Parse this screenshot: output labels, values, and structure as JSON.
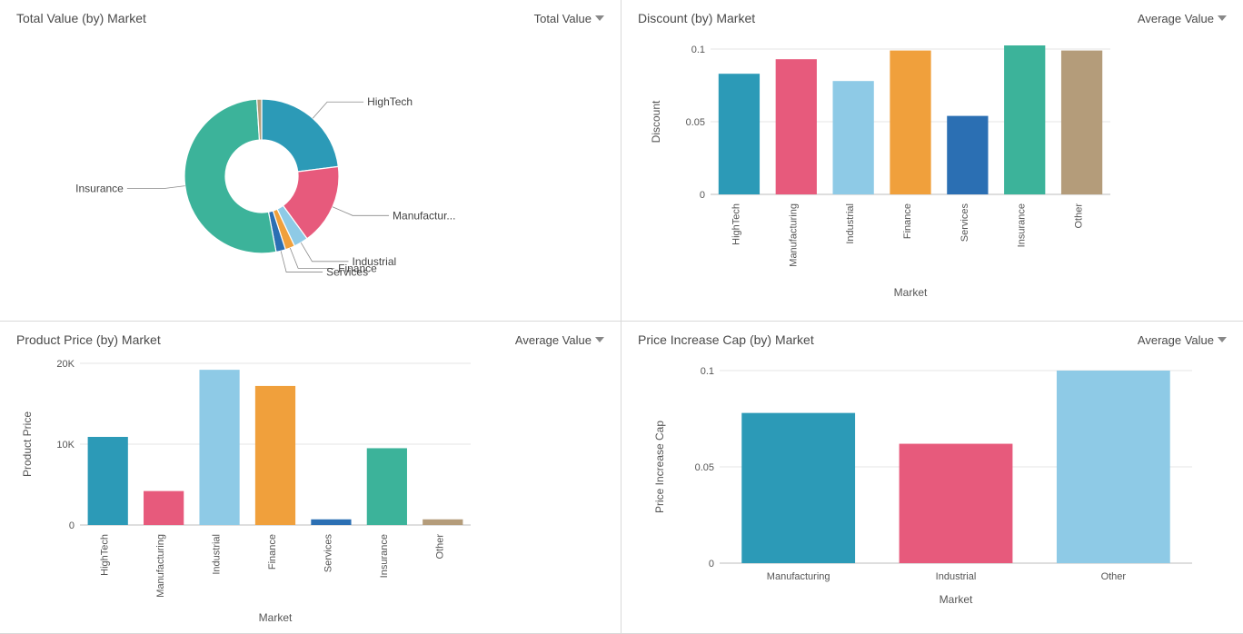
{
  "panels": {
    "totalValue": {
      "title": "Total Value (by) Market",
      "selector": "Total Value",
      "type": "donut",
      "inner_radius": 40,
      "outer_radius": 85,
      "background_color": "#ffffff",
      "label_fontsize": 12,
      "slices": [
        {
          "label": "HighTech",
          "value": 23,
          "color": "#2c9ab7"
        },
        {
          "label": "Manufactur...",
          "value": 17,
          "color": "#e75a7c"
        },
        {
          "label": "Industrial",
          "value": 3,
          "color": "#8ecae6"
        },
        {
          "label": "Finance",
          "value": 2,
          "color": "#f0a03c"
        },
        {
          "label": "Services",
          "value": 2,
          "color": "#2b6fb3"
        },
        {
          "label": "Insurance",
          "value": 52,
          "color": "#3cb39a"
        },
        {
          "label": "Other",
          "value": 1,
          "color": "#b49c7a",
          "no_label": true
        }
      ]
    },
    "discount": {
      "title": "Discount (by) Market",
      "selector": "Average Value",
      "type": "bar",
      "xlabel": "Market",
      "ylabel": "Discount",
      "ylim": [
        0,
        0.1
      ],
      "yticks": [
        0,
        0.05,
        0.1
      ],
      "label_fontsize": 12,
      "background_color": "#ffffff",
      "grid_color": "#e4e4e4",
      "bar_width": 0.72,
      "x_rotate": -90,
      "bars": [
        {
          "label": "HighTech",
          "value": 0.083,
          "color": "#2c9ab7"
        },
        {
          "label": "Manufacturing",
          "value": 0.093,
          "color": "#e75a7c"
        },
        {
          "label": "Industrial",
          "value": 0.078,
          "color": "#8ecae6"
        },
        {
          "label": "Finance",
          "value": 0.099,
          "color": "#f0a03c"
        },
        {
          "label": "Services",
          "value": 0.054,
          "color": "#2b6fb3"
        },
        {
          "label": "Insurance",
          "value": 0.103,
          "color": "#3cb39a"
        },
        {
          "label": "Other",
          "value": 0.099,
          "color": "#b49c7a"
        }
      ]
    },
    "productPrice": {
      "title": "Product Price (by) Market",
      "selector": "Average Value",
      "type": "bar",
      "xlabel": "Market",
      "ylabel": "Product Price",
      "ylim": [
        0,
        20000
      ],
      "yticks": [
        0,
        10000,
        20000
      ],
      "ytick_labels": [
        "0",
        "10K",
        "20K"
      ],
      "label_fontsize": 12,
      "background_color": "#ffffff",
      "grid_color": "#e4e4e4",
      "bar_width": 0.72,
      "x_rotate": -90,
      "bars": [
        {
          "label": "HighTech",
          "value": 10900,
          "color": "#2c9ab7"
        },
        {
          "label": "Manufacturing",
          "value": 4200,
          "color": "#e75a7c"
        },
        {
          "label": "Industrial",
          "value": 19200,
          "color": "#8ecae6"
        },
        {
          "label": "Finance",
          "value": 17200,
          "color": "#f0a03c"
        },
        {
          "label": "Services",
          "value": 700,
          "color": "#2b6fb3"
        },
        {
          "label": "Insurance",
          "value": 9500,
          "color": "#3cb39a"
        },
        {
          "label": "Other",
          "value": 700,
          "color": "#b49c7a"
        }
      ]
    },
    "priceCap": {
      "title": "Price Increase Cap (by) Market",
      "selector": "Average Value",
      "type": "bar",
      "xlabel": "Market",
      "ylabel": "Price Increase Cap",
      "ylim": [
        0,
        0.1
      ],
      "yticks": [
        0,
        0.05,
        0.1
      ],
      "label_fontsize": 12,
      "background_color": "#ffffff",
      "grid_color": "#e4e4e4",
      "bar_width": 0.72,
      "x_rotate": 0,
      "bars": [
        {
          "label": "Manufacturing",
          "value": 0.078,
          "color": "#2c9ab7"
        },
        {
          "label": "Industrial",
          "value": 0.062,
          "color": "#e75a7c"
        },
        {
          "label": "Other",
          "value": 0.1,
          "color": "#8ecae6"
        }
      ]
    }
  }
}
